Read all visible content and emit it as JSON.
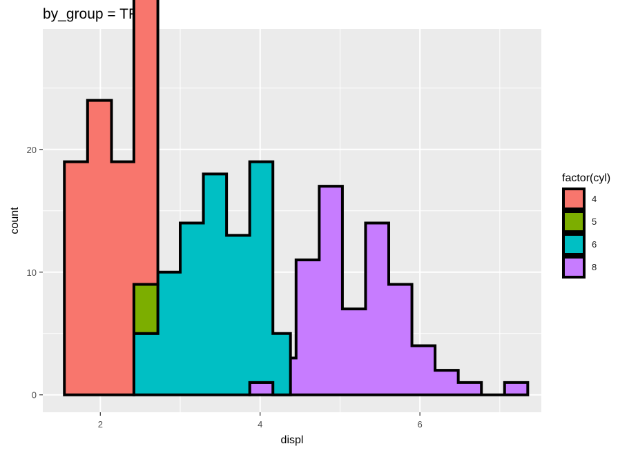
{
  "chart_data": {
    "type": "bar",
    "subtype": "stacked-histogram-step-outline",
    "title": "by_group = TRUE",
    "xlabel": "displ",
    "ylabel": "count",
    "xlim": [
      1.28,
      7.52
    ],
    "ylim": [
      -1.42,
      29.82
    ],
    "x_ticks": [
      2,
      4,
      6
    ],
    "x_tick_labels": [
      "2",
      "4",
      "6"
    ],
    "x_minor_ticks": [
      3,
      5,
      7
    ],
    "y_ticks": [
      0,
      10,
      20
    ],
    "y_tick_labels": [
      "0",
      "10",
      "20"
    ],
    "y_minor_ticks": [
      5,
      15,
      25
    ],
    "grid": true,
    "panel_background": "#EBEBEB",
    "outline_color": "#000000",
    "legend": {
      "title": "factor(cyl)",
      "position": "right"
    },
    "series": [
      {
        "name": "4",
        "color": "#F8766D",
        "steps": [
          {
            "x0": 1.55,
            "x1": 1.84,
            "count": 19
          },
          {
            "x0": 1.84,
            "x1": 2.14,
            "count": 24
          },
          {
            "x0": 2.14,
            "x1": 2.42,
            "count": 19
          },
          {
            "x0": 2.42,
            "x1": 2.72,
            "count": 28
          }
        ]
      },
      {
        "name": "5",
        "color": "#7CAE00",
        "steps": [
          {
            "x0": 2.42,
            "x1": 2.72,
            "count": 4
          }
        ]
      },
      {
        "name": "6",
        "color": "#00BFC4",
        "steps": [
          {
            "x0": 2.42,
            "x1": 2.72,
            "count": 5
          },
          {
            "x0": 2.72,
            "x1": 3.0,
            "count": 10
          },
          {
            "x0": 3.0,
            "x1": 3.29,
            "count": 14
          },
          {
            "x0": 3.29,
            "x1": 3.58,
            "count": 18
          },
          {
            "x0": 3.58,
            "x1": 3.87,
            "count": 13
          },
          {
            "x0": 3.87,
            "x1": 4.16,
            "count": 18
          },
          {
            "x0": 4.16,
            "x1": 4.38,
            "count": 5
          }
        ]
      },
      {
        "name": "8",
        "color": "#C77CFF",
        "steps": [
          {
            "x0": 3.87,
            "x1": 4.16,
            "count": 1
          },
          {
            "x0": 4.16,
            "x1": 4.45,
            "count": 3
          },
          {
            "x0": 4.45,
            "x1": 4.74,
            "count": 11
          },
          {
            "x0": 4.74,
            "x1": 5.03,
            "count": 17
          },
          {
            "x0": 5.03,
            "x1": 5.32,
            "count": 7
          },
          {
            "x0": 5.32,
            "x1": 5.61,
            "count": 14
          },
          {
            "x0": 5.61,
            "x1": 5.9,
            "count": 9
          },
          {
            "x0": 5.9,
            "x1": 6.19,
            "count": 4
          },
          {
            "x0": 6.19,
            "x1": 6.48,
            "count": 2
          },
          {
            "x0": 6.48,
            "x1": 6.77,
            "count": 1
          },
          {
            "x0": 6.77,
            "x1": 7.06,
            "count": 0
          },
          {
            "x0": 7.06,
            "x1": 7.35,
            "count": 1
          }
        ]
      }
    ]
  }
}
